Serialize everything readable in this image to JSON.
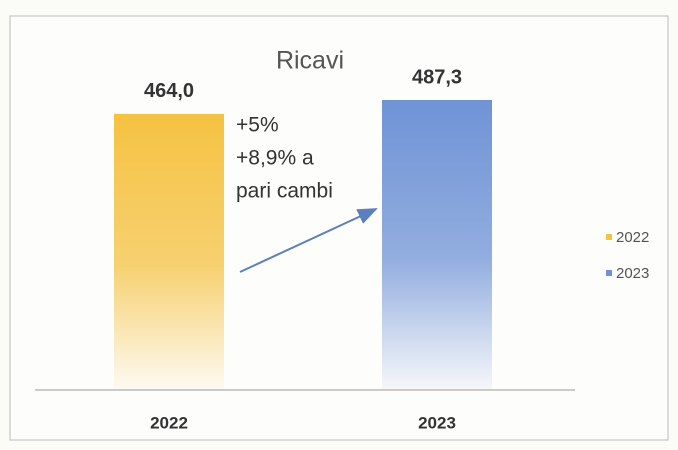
{
  "chart_data": {
    "type": "bar",
    "title": "Ricavi",
    "categories": [
      "2022",
      "2023"
    ],
    "series": [
      {
        "name": "2022",
        "color": "#f5c242",
        "values": [
          464.0,
          null
        ],
        "value_labels": [
          "464,0",
          null
        ]
      },
      {
        "name": "2023",
        "color": "#6f93d6",
        "values": [
          null,
          487.3
        ],
        "value_labels": [
          null,
          "487,3"
        ]
      }
    ],
    "annotation": [
      "+5%",
      "+8,9% a",
      "pari cambi"
    ],
    "legend": "right"
  }
}
